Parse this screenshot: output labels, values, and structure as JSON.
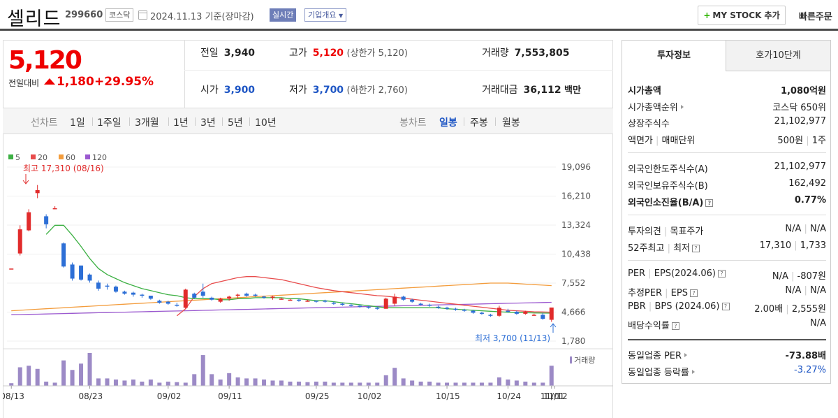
{
  "header": {
    "name": "셀리드",
    "code": "299660",
    "market": "코스닥",
    "date": "2024.11.13",
    "basis": "기준(장마감)",
    "realtime_label": "실시간",
    "company_label": "기업개요",
    "mystock_label": "MY STOCK 추가",
    "quick_label": "빠른주문"
  },
  "price": {
    "current": "5,120",
    "change_label": "전일대비",
    "change": "1,180",
    "change_pct": "+29.95%"
  },
  "summary": {
    "prev_label": "전일",
    "prev": "3,940",
    "high_label": "고가",
    "high": "5,120",
    "upper_limit": "(상한가 5,120)",
    "volume_label": "거래량",
    "volume": "7,553,805",
    "open_label": "시가",
    "open": "3,900",
    "low_label": "저가",
    "low": "3,700",
    "lower_limit": "(하한가 2,760)",
    "amount_label": "거래대금",
    "amount": "36,112",
    "amount_unit": "백만"
  },
  "periods": {
    "line_label": "선차트",
    "items": [
      "1일",
      "1주일",
      "3개월",
      "1년",
      "3년",
      "5년",
      "10년"
    ],
    "candle_label": "봉차트",
    "candle_items": [
      "일봉",
      "주봉",
      "월봉"
    ],
    "candle_active": "일봉"
  },
  "chart_data": {
    "type": "candlestick",
    "legend": [
      "5",
      "20",
      "60",
      "120"
    ],
    "legend_colors": [
      "#3cb043",
      "#e84c4c",
      "#f39c3c",
      "#9b59d0"
    ],
    "yticks": [
      "19,096",
      "16,210",
      "13,324",
      "10,438",
      "7,552",
      "4,666",
      "1,780"
    ],
    "ylim": [
      1780,
      19096
    ],
    "xticks": [
      "08/13",
      "08/23",
      "09/02",
      "09/11",
      "09/25",
      "10/02",
      "10/15",
      "10/24",
      "11/01",
      "11/12"
    ],
    "high_annotation": "최고 17,310 (08/16)",
    "low_annotation": "최저 3,700 (11/13)",
    "volume_label": "거래량",
    "candles": [
      [
        9000,
        9000,
        9000,
        9000
      ],
      [
        10500,
        13300,
        10300,
        12900
      ],
      [
        12800,
        14900,
        12700,
        14600
      ],
      [
        16500,
        17310,
        16000,
        16800
      ],
      [
        14200,
        14400,
        13000,
        13400
      ],
      [
        15000,
        15200,
        14900,
        15000
      ],
      [
        11500,
        11600,
        9100,
        9200
      ],
      [
        9400,
        9600,
        7800,
        8000
      ],
      [
        9300,
        9300,
        7800,
        7900
      ],
      [
        8400,
        8500,
        7600,
        7800
      ],
      [
        7600,
        7800,
        6800,
        7000
      ],
      [
        7300,
        7500,
        6900,
        7200
      ],
      [
        7200,
        7300,
        6600,
        6700
      ],
      [
        6700,
        6800,
        6400,
        6500
      ],
      [
        6600,
        6700,
        6200,
        6400
      ],
      [
        6400,
        6500,
        6100,
        6300
      ],
      [
        6300,
        6300,
        5900,
        6000
      ],
      [
        5800,
        5900,
        5500,
        5600
      ],
      [
        5700,
        5800,
        5400,
        5500
      ],
      [
        5400,
        5600,
        5200,
        5300
      ],
      [
        5100,
        7000,
        5000,
        6900
      ],
      [
        6500,
        6600,
        6000,
        6100
      ],
      [
        6700,
        7500,
        6100,
        6300
      ],
      [
        6100,
        6200,
        5800,
        5900
      ],
      [
        5700,
        6100,
        5600,
        6000
      ],
      [
        6000,
        6300,
        5800,
        6200
      ],
      [
        6300,
        6500,
        6000,
        6400
      ],
      [
        6500,
        6600,
        6200,
        6300
      ],
      [
        6400,
        6500,
        6200,
        6300
      ],
      [
        6200,
        6300,
        6000,
        6100
      ],
      [
        6100,
        6300,
        5900,
        6200
      ],
      [
        6000,
        6100,
        5900,
        6000
      ],
      [
        5900,
        6000,
        5800,
        5900
      ],
      [
        5900,
        6000,
        5700,
        5800
      ],
      [
        5800,
        5900,
        5700,
        5800
      ],
      [
        5800,
        5800,
        5600,
        5700
      ],
      [
        5800,
        5900,
        5600,
        5700
      ],
      [
        5600,
        5700,
        5400,
        5500
      ],
      [
        5500,
        5600,
        5300,
        5400
      ],
      [
        5400,
        5500,
        5200,
        5300
      ],
      [
        5300,
        5400,
        5100,
        5200
      ],
      [
        5200,
        5300,
        5000,
        5100
      ],
      [
        5100,
        5200,
        4900,
        5000
      ],
      [
        5000,
        6100,
        5000,
        6000
      ],
      [
        5500,
        6500,
        5300,
        6200
      ],
      [
        6200,
        6300,
        5800,
        5900
      ],
      [
        5900,
        6000,
        5600,
        5700
      ],
      [
        5500,
        5600,
        5300,
        5400
      ],
      [
        5400,
        5500,
        5200,
        5300
      ],
      [
        5200,
        5300,
        5000,
        5100
      ],
      [
        5100,
        5200,
        4900,
        5000
      ],
      [
        5000,
        5100,
        4800,
        4900
      ],
      [
        4900,
        5000,
        4700,
        4800
      ],
      [
        4800,
        4900,
        4500,
        4600
      ],
      [
        4600,
        4700,
        4400,
        4500
      ],
      [
        4400,
        4500,
        4200,
        4300
      ],
      [
        4300,
        5300,
        4200,
        5100
      ],
      [
        4800,
        5000,
        4600,
        4700
      ],
      [
        4700,
        4800,
        4400,
        4500
      ],
      [
        4500,
        4800,
        4400,
        4700
      ],
      [
        4400,
        4500,
        4300,
        4400
      ],
      [
        4400,
        4600,
        3900,
        4000
      ],
      [
        3900,
        5120,
        3700,
        5120
      ]
    ],
    "volumes": [
      5,
      35,
      38,
      32,
      8,
      6,
      48,
      30,
      42,
      62,
      14,
      14,
      12,
      10,
      12,
      8,
      12,
      6,
      8,
      7,
      6,
      22,
      58,
      22,
      12,
      24,
      16,
      14,
      14,
      12,
      10,
      10,
      8,
      8,
      7,
      8,
      8,
      6,
      6,
      6,
      6,
      6,
      6,
      20,
      34,
      14,
      10,
      8,
      8,
      6,
      6,
      6,
      6,
      6,
      6,
      6,
      16,
      12,
      10,
      8,
      6,
      6,
      38
    ],
    "ma5": [
      null,
      null,
      null,
      null,
      12400,
      13300,
      13300,
      12300,
      11200,
      10000,
      9000,
      8400,
      8000,
      7600,
      7300,
      7000,
      6800,
      6600,
      6400,
      6300,
      6100,
      6000,
      6000,
      6000,
      5900,
      5900,
      6000,
      6000,
      6100,
      6100,
      6100,
      6100,
      6000,
      6000,
      5900,
      5800,
      5800,
      5700,
      5600,
      5500,
      5400,
      5300,
      5200,
      5100,
      5100,
      5100,
      5100,
      5100,
      5100,
      5100,
      5000,
      4950,
      4900,
      4850,
      4800,
      4750,
      4700,
      4650,
      4620,
      4600,
      4580,
      4570,
      4560
    ],
    "ma20": [
      null,
      null,
      null,
      null,
      null,
      null,
      null,
      null,
      null,
      null,
      null,
      null,
      null,
      null,
      null,
      null,
      null,
      null,
      null,
      4300,
      5000,
      6200,
      7000,
      7500,
      7700,
      7900,
      8100,
      8200,
      8200,
      8100,
      8000,
      7900,
      7700,
      7500,
      7300,
      7100,
      6950,
      6800,
      6700,
      6600,
      6500,
      6400,
      6300,
      6250,
      6150,
      6050,
      5950,
      5850,
      5750,
      5650,
      5550,
      5450,
      5350,
      5250,
      5150,
      5050,
      4950,
      4850,
      4800,
      4750,
      4700,
      4680,
      4660
    ],
    "ma60": [
      4800,
      4850,
      4900,
      4950,
      5000,
      5050,
      5100,
      5150,
      5200,
      5250,
      5300,
      5350,
      5400,
      5450,
      5500,
      5550,
      5600,
      5650,
      5700,
      5750,
      5800,
      5850,
      5900,
      5950,
      6000,
      6050,
      6100,
      6150,
      6200,
      6250,
      6300,
      6350,
      6400,
      6450,
      6500,
      6550,
      6600,
      6650,
      6700,
      6750,
      6800,
      6850,
      6900,
      6950,
      7000,
      7050,
      7100,
      7150,
      7200,
      7250,
      7300,
      7350,
      7400,
      7450,
      7500,
      7550,
      7550,
      7550,
      7500,
      7450,
      7400,
      7350,
      7300
    ],
    "ma120": [
      4400,
      4420,
      4440,
      4460,
      4480,
      4500,
      4520,
      4540,
      4560,
      4580,
      4600,
      4620,
      4640,
      4660,
      4680,
      4700,
      4720,
      4740,
      4760,
      4780,
      4800,
      4820,
      4840,
      4860,
      4880,
      4900,
      4920,
      4940,
      4960,
      4980,
      5000,
      5020,
      5040,
      5060,
      5080,
      5100,
      5120,
      5140,
      5160,
      5180,
      5200,
      5220,
      5240,
      5260,
      5280,
      5300,
      5320,
      5340,
      5360,
      5380,
      5400,
      5420,
      5440,
      5460,
      5480,
      5500,
      5520,
      5540,
      5560,
      5580,
      5600,
      5620,
      5640
    ]
  },
  "right_panel": {
    "tabs": [
      "투자정보",
      "호가10단계"
    ],
    "rows1": [
      {
        "k": "시가총액",
        "v": "1,080억원"
      },
      {
        "k": "시가총액순위",
        "v": "코스닥 650위"
      },
      {
        "k": "상장주식수",
        "v": "21,102,977"
      },
      {
        "k": "액면가",
        "k2": "매매단위",
        "v": "500원",
        "v2": "1주"
      }
    ],
    "rows2": [
      {
        "k": "외국인한도주식수(A)",
        "v": "21,102,977"
      },
      {
        "k": "외국인보유주식수(B)",
        "v": "162,492"
      },
      {
        "k": "외국인소진율(B/A)",
        "v": "0.77%"
      }
    ],
    "rows3": [
      {
        "k": "투자의견",
        "k2": "목표주가",
        "v": "N/A",
        "v2": "N/A"
      },
      {
        "k": "52주최고",
        "k2": "최저",
        "v": "17,310",
        "v2": "1,733"
      }
    ],
    "rows4": [
      {
        "k": "PER",
        "k2": "EPS(2024.06)",
        "v": "N/A",
        "v2": "-807원"
      },
      {
        "k": "추정PER",
        "k2": "EPS",
        "v": "N/A",
        "v2": "N/A"
      },
      {
        "k": "PBR",
        "k2": "BPS (2024.06)",
        "v": "2.00배",
        "v2": "2,555원"
      },
      {
        "k": "배당수익률",
        "v": "N/A"
      }
    ],
    "rows5": [
      {
        "k": "동일업종 PER",
        "v": "-73.88배"
      },
      {
        "k": "동일업종 등락률",
        "v": "-3.27%"
      }
    ]
  }
}
